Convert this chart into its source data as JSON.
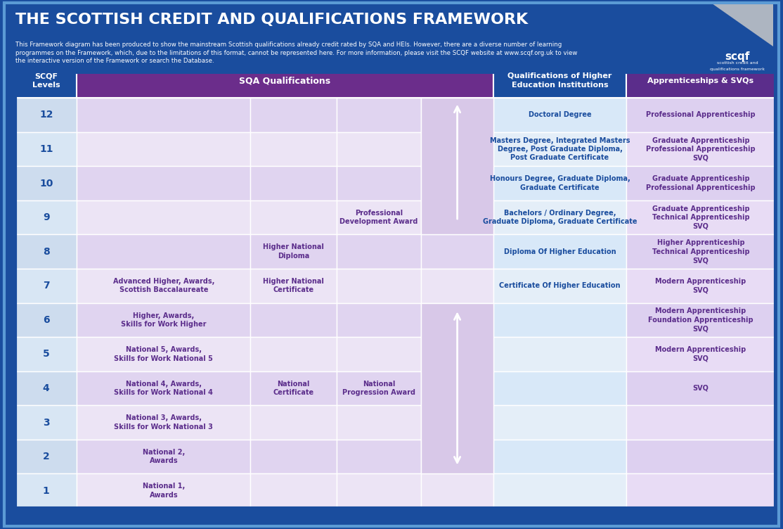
{
  "title": "THE SCOTTISH CREDIT AND QUALIFICATIONS FRAMEWORK",
  "subtitle": "This Framework diagram has been produced to show the mainstream Scottish qualifications already credit rated by SQA and HEIs. However, there are a diverse number of learning\nprogrammes on the Framework, which, due to the limitations of this format, cannot be represented here. For more information, please visit the SCQF website at www.scqf.org.uk to view\nthe interactive version of the Framework or search the Database.",
  "header_bg": "#1a4d9e",
  "title_color": "#ffffff",
  "col_header_colors": [
    "#1a4d9e",
    "#6b2d8b",
    "#6b2d8b",
    "#6b2d8b",
    "#6b2d8b",
    "#1a4d9e",
    "#5b2d8b"
  ],
  "col_headers": [
    "SCQF\nLevels",
    "SQA Qualifications",
    "",
    "",
    "",
    "Qualifications of Higher\nEducation Institutions",
    "Apprenticeships & SVQs"
  ],
  "levels": [
    12,
    11,
    10,
    9,
    8,
    7,
    6,
    5,
    4,
    3,
    2,
    1
  ],
  "col_bg_light": "#e8dff0",
  "col_bg_medium": "#d4c4e8",
  "col_bg_dark": "#c0a8e0",
  "cell_data": {
    "12": {
      "col1": "",
      "col2": "",
      "col3": "",
      "col4": "arrow_up",
      "col5": "Doctoral Degree",
      "col6": "Professional Apprenticeship"
    },
    "11": {
      "col1": "",
      "col2": "",
      "col3": "",
      "col4": "",
      "col5": "Masters Degree, Integrated Masters\nDegree, Post Graduate Diploma,\nPost Graduate Certificate",
      "col6": "Graduate Apprenticeship\nProfessional Apprenticeship\nSVQ"
    },
    "10": {
      "col1": "",
      "col2": "",
      "col3": "",
      "col4": "",
      "col5": "Honours Degree, Graduate Diploma,\nGraduate Certificate",
      "col6": "Graduate Apprenticeship\nProfessional Apprenticeship"
    },
    "9": {
      "col1": "",
      "col2": "",
      "col3": "Professional\nDevelopment Award",
      "col4": "",
      "col5": "Bachelors / Ordinary Degree,\nGraduate Diploma, Graduate Certificate",
      "col6": "Graduate Apprenticeship\nTechnical Apprenticeship\nSVQ"
    },
    "8": {
      "col1": "",
      "col2": "Higher National\nDiploma",
      "col3": "",
      "col4": "",
      "col5": "Diploma Of Higher Education",
      "col6": "Higher Apprenticeship\nTechnical Apprenticeship\nSVQ"
    },
    "7": {
      "col1": "Advanced Higher, Awards,\nScottish Baccalaureate",
      "col2": "Higher National\nCertificate",
      "col3": "",
      "col4": "",
      "col5": "Certificate Of Higher Education",
      "col6": "Modern Apprenticeship\nSVQ"
    },
    "6": {
      "col1": "Higher, Awards,\nSkills for Work Higher",
      "col2": "",
      "col3": "",
      "col4": "arrow_updown",
      "col5": "",
      "col6": "Modern Apprenticeship\nFoundation Apprenticeship\nSVQ"
    },
    "5": {
      "col1": "National 5, Awards,\nSkills for Work National 5",
      "col2": "",
      "col3": "",
      "col4": "",
      "col5": "",
      "col6": "Modern Apprenticeship\nSVQ"
    },
    "4": {
      "col1": "National 4, Awards,\nSkills for Work National 4",
      "col2": "National\nCertificate",
      "col3": "National\nProgression Award",
      "col4": "",
      "col5": "",
      "col6": "SVQ"
    },
    "3": {
      "col1": "National 3, Awards,\nSkills for Work National 3",
      "col2": "",
      "col3": "",
      "col4": "",
      "col5": "",
      "col6": ""
    },
    "2": {
      "col1": "National 2,\nAwards",
      "col2": "",
      "col3": "",
      "col4": "arrow_down",
      "col5": "",
      "col6": ""
    },
    "1": {
      "col1": "National 1,\nAwards",
      "col2": "",
      "col3": "",
      "col4": "",
      "col5": "",
      "col6": ""
    }
  },
  "text_color_purple": "#5b2d8b",
  "text_color_blue": "#1a4d9e",
  "text_color_white": "#ffffff",
  "border_color": "#ffffff",
  "outer_border": "#1a4d9e"
}
